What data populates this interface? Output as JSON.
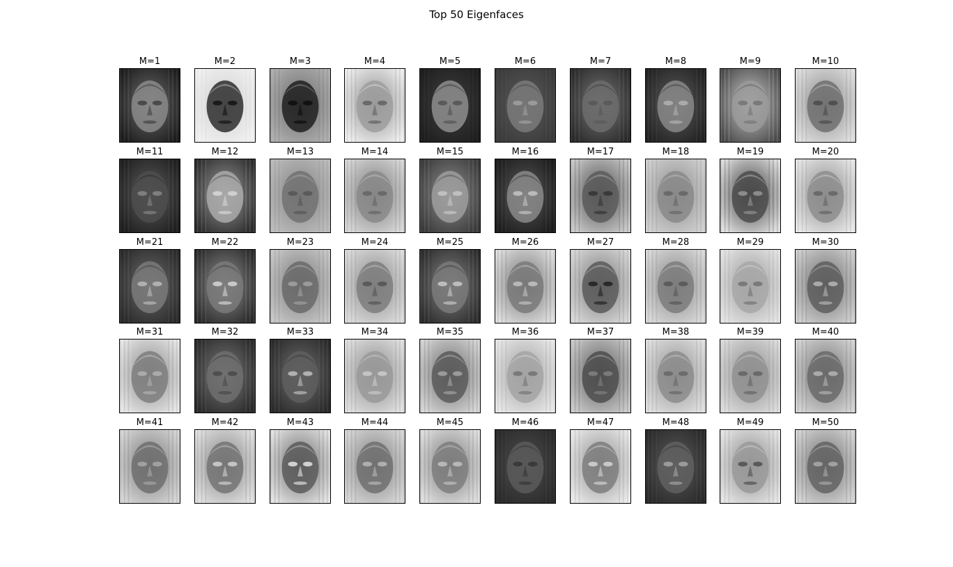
{
  "figure": {
    "title": "Top 50 Eigenfaces"
  },
  "rows": 5,
  "cols": 10,
  "panels": [
    {
      "label": "M=1",
      "bg": "#6e6e6e",
      "face": "#8a8a8a",
      "eyes": "#4a4a4a",
      "corner": "#1c1c1c"
    },
    {
      "label": "M=2",
      "bg": "#cfcfcf",
      "face": "#2e2e2e",
      "eyes": "#1a1a1a",
      "corner": "#f2f2f2"
    },
    {
      "label": "M=3",
      "bg": "#6a6a6a",
      "face": "#202020",
      "eyes": "#111111",
      "corner": "#b0b0b0"
    },
    {
      "label": "M=4",
      "bg": "#8d8d8d",
      "face": "#9e9e9e",
      "eyes": "#6a6a6a",
      "corner": "#f0f0f0"
    },
    {
      "label": "M=5",
      "bg": "#404040",
      "face": "#8e8e8e",
      "eyes": "#5a5a5a",
      "corner": "#1e1e1e"
    },
    {
      "label": "M=6",
      "bg": "#5a5a5a",
      "face": "#7a7a7a",
      "eyes": "#9a9a9a",
      "corner": "#3a3a3a"
    },
    {
      "label": "M=7",
      "bg": "#777777",
      "face": "#6c6c6c",
      "eyes": "#5a5a5a",
      "corner": "#2a2a2a"
    },
    {
      "label": "M=8",
      "bg": "#5c5c5c",
      "face": "#888888",
      "eyes": "#aaaaaa",
      "corner": "#222222"
    },
    {
      "label": "M=9",
      "bg": "#c8c8c8",
      "face": "#9a9a9a",
      "eyes": "#7a7a7a",
      "corner": "#4a4a4a"
    },
    {
      "label": "M=10",
      "bg": "#8a8a8a",
      "face": "#707070",
      "eyes": "#505050",
      "corner": "#e0e0e0"
    },
    {
      "label": "M=11",
      "bg": "#5e5e5e",
      "face": "#4e4e4e",
      "eyes": "#7e7e7e",
      "corner": "#1e1e1e"
    },
    {
      "label": "M=12",
      "bg": "#9a9a9a",
      "face": "#aaaaaa",
      "eyes": "#d0d0d0",
      "corner": "#2c2c2c"
    },
    {
      "label": "M=13",
      "bg": "#828282",
      "face": "#727272",
      "eyes": "#5a5a5a",
      "corner": "#bcbcbc"
    },
    {
      "label": "M=14",
      "bg": "#7a7a7a",
      "face": "#8a8a8a",
      "eyes": "#6a6a6a",
      "corner": "#d8d8d8"
    },
    {
      "label": "M=15",
      "bg": "#8e8e8e",
      "face": "#9e9e9e",
      "eyes": "#c0c0c0",
      "corner": "#3a3a3a"
    },
    {
      "label": "M=16",
      "bg": "#5a5a5a",
      "face": "#8a8a8a",
      "eyes": "#bababa",
      "corner": "#1c1c1c"
    },
    {
      "label": "M=17",
      "bg": "#4c4c4c",
      "face": "#5c5c5c",
      "eyes": "#3a3a3a",
      "corner": "#cacaca"
    },
    {
      "label": "M=18",
      "bg": "#8c8c8c",
      "face": "#8a8a8a",
      "eyes": "#6a6a6a",
      "corner": "#d0d0d0"
    },
    {
      "label": "M=19",
      "bg": "#3c3c3c",
      "face": "#4c4c4c",
      "eyes": "#8a8a8a",
      "corner": "#e0e0e0"
    },
    {
      "label": "M=20",
      "bg": "#8a8a8a",
      "face": "#8e8e8e",
      "eyes": "#6a6a6a",
      "corner": "#e8e8e8"
    },
    {
      "label": "M=21",
      "bg": "#6a6a6a",
      "face": "#7a7a7a",
      "eyes": "#b0b0b0",
      "corner": "#2a2a2a"
    },
    {
      "label": "M=22",
      "bg": "#8e8e8e",
      "face": "#7a7a7a",
      "eyes": "#c8c8c8",
      "corner": "#2a2a2a"
    },
    {
      "label": "M=23",
      "bg": "#7a7a7a",
      "face": "#6a6a6a",
      "eyes": "#9a9a9a",
      "corner": "#c8c8c8"
    },
    {
      "label": "M=24",
      "bg": "#8a8a8a",
      "face": "#7e7e7e",
      "eyes": "#5a5a5a",
      "corner": "#dcdcdc"
    },
    {
      "label": "M=25",
      "bg": "#828282",
      "face": "#7a7a7a",
      "eyes": "#bcbcbc",
      "corner": "#2c2c2c"
    },
    {
      "label": "M=26",
      "bg": "#727272",
      "face": "#7a7a7a",
      "eyes": "#b8b8b8",
      "corner": "#e0e0e0"
    },
    {
      "label": "M=27",
      "bg": "#7a7a7a",
      "face": "#5a5a5a",
      "eyes": "#2a2a2a",
      "corner": "#d8d8d8"
    },
    {
      "label": "M=28",
      "bg": "#868686",
      "face": "#7c7c7c",
      "eyes": "#5c5c5c",
      "corner": "#dadada"
    },
    {
      "label": "M=29",
      "bg": "#9a9a9a",
      "face": "#a8a8a8",
      "eyes": "#7a7a7a",
      "corner": "#e4e4e4"
    },
    {
      "label": "M=30",
      "bg": "#6c6c6c",
      "face": "#5e5e5e",
      "eyes": "#aaaaaa",
      "corner": "#d0d0d0"
    },
    {
      "label": "M=31",
      "bg": "#8a8a8a",
      "face": "#7e7e7e",
      "eyes": "#aaaaaa",
      "corner": "#e6e6e6"
    },
    {
      "label": "M=32",
      "bg": "#7a7a7a",
      "face": "#6e6e6e",
      "eyes": "#4e4e4e",
      "corner": "#2a2a2a"
    },
    {
      "label": "M=33",
      "bg": "#6e6e6e",
      "face": "#5e5e5e",
      "eyes": "#b0b0b0",
      "corner": "#2a2a2a"
    },
    {
      "label": "M=34",
      "bg": "#8a8a8a",
      "face": "#9a9a9a",
      "eyes": "#c4c4c4",
      "corner": "#e0e0e0"
    },
    {
      "label": "M=35",
      "bg": "#6a6a6a",
      "face": "#5a5a5a",
      "eyes": "#9a9a9a",
      "corner": "#d6d6d6"
    },
    {
      "label": "M=36",
      "bg": "#9e9e9e",
      "face": "#a4a4a4",
      "eyes": "#7a7a7a",
      "corner": "#e8e8e8"
    },
    {
      "label": "M=37",
      "bg": "#5a5a5a",
      "face": "#4e4e4e",
      "eyes": "#7a7a7a",
      "corner": "#cacaca"
    },
    {
      "label": "M=38",
      "bg": "#909090",
      "face": "#8c8c8c",
      "eyes": "#6c6c6c",
      "corner": "#e0e0e0"
    },
    {
      "label": "M=39",
      "bg": "#8a8a8a",
      "face": "#929292",
      "eyes": "#6a6a6a",
      "corner": "#dcdcdc"
    },
    {
      "label": "M=40",
      "bg": "#727272",
      "face": "#6a6a6a",
      "eyes": "#aaaaaa",
      "corner": "#d4d4d4"
    },
    {
      "label": "M=41",
      "bg": "#7a7a7a",
      "face": "#6e6e6e",
      "eyes": "#a0a0a0",
      "corner": "#d6d6d6"
    },
    {
      "label": "M=42",
      "bg": "#828282",
      "face": "#747474",
      "eyes": "#c4c4c4",
      "corner": "#e2e2e2"
    },
    {
      "label": "M=43",
      "bg": "#6a6a6a",
      "face": "#5c5c5c",
      "eyes": "#d0d0d0",
      "corner": "#e4e4e4"
    },
    {
      "label": "M=44",
      "bg": "#7e7e7e",
      "face": "#707070",
      "eyes": "#aeaeae",
      "corner": "#d8d8d8"
    },
    {
      "label": "M=45",
      "bg": "#7a7a7a",
      "face": "#7e7e7e",
      "eyes": "#b8b8b8",
      "corner": "#e0e0e0"
    },
    {
      "label": "M=46",
      "bg": "#4e4e4e",
      "face": "#5a5a5a",
      "eyes": "#3a3a3a",
      "corner": "#2a2a2a"
    },
    {
      "label": "M=47",
      "bg": "#8e8e8e",
      "face": "#7e7e7e",
      "eyes": "#c8c8c8",
      "corner": "#eaeaea"
    },
    {
      "label": "M=48",
      "bg": "#5a5a5a",
      "face": "#606060",
      "eyes": "#9a9a9a",
      "corner": "#2a2a2a"
    },
    {
      "label": "M=49",
      "bg": "#8a8a8a",
      "face": "#9a9a9a",
      "eyes": "#5a5a5a",
      "corner": "#e6e6e6"
    },
    {
      "label": "M=50",
      "bg": "#6e6e6e",
      "face": "#646464",
      "eyes": "#a0a0a0",
      "corner": "#d6d6d6"
    }
  ]
}
